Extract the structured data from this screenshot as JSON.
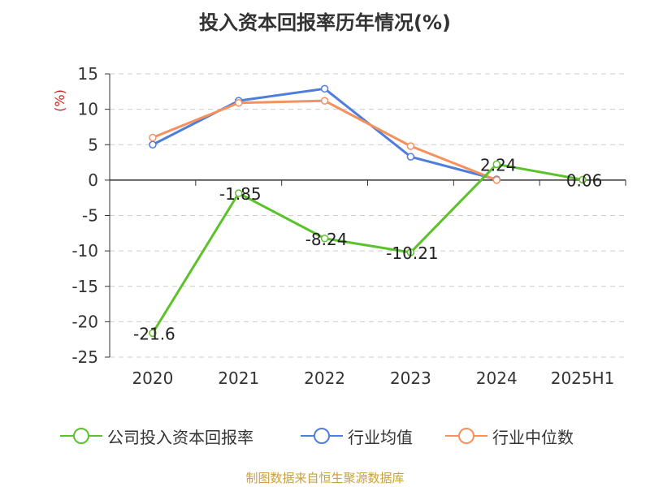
{
  "title": "投入资本回报率历年情况(%)",
  "source": "制图数据来自恒生聚源数据库",
  "chart_data": {
    "type": "line",
    "title": "投入资本回报率历年情况(%)",
    "ylabel": "(%)",
    "xlabel": "",
    "categories": [
      "2020",
      "2021",
      "2022",
      "2023",
      "2024",
      "2025H1"
    ],
    "ylim": [
      -25,
      15
    ],
    "yticks": [
      15,
      10,
      5,
      0,
      -5,
      -10,
      -15,
      -20,
      -25
    ],
    "grid": true,
    "legend_position": "bottom",
    "series": [
      {
        "name": "公司投入资本回报率",
        "color": "#5cc22b",
        "values": [
          -21.6,
          -1.85,
          -8.24,
          -10.21,
          2.24,
          0.06
        ],
        "labels": [
          "-21.6",
          "-1.85",
          "-8.24",
          "-10.21",
          "2.24",
          "0.06"
        ]
      },
      {
        "name": "行业均值",
        "color": "#4f7ddb",
        "values": [
          5.0,
          11.2,
          12.9,
          3.3,
          0.1,
          null
        ]
      },
      {
        "name": "行业中位数",
        "color": "#f5915e",
        "values": [
          6.0,
          10.9,
          11.2,
          4.8,
          0.0,
          null
        ]
      }
    ]
  }
}
